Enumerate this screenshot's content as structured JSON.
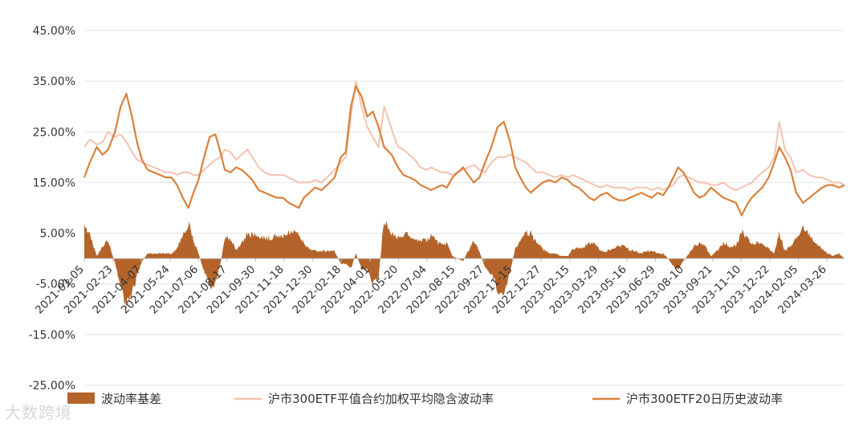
{
  "chart_data": {
    "type": "line",
    "title": "",
    "xlabel": "",
    "ylabel": "",
    "ylim": [
      -0.25,
      0.45
    ],
    "y_ticks": [
      "45.00%",
      "35.00%",
      "25.00%",
      "15.00%",
      "5.00%",
      "-5.00%",
      "-15.00%",
      "-25.00%"
    ],
    "y_tick_values": [
      0.45,
      0.35,
      0.25,
      0.15,
      0.05,
      -0.05,
      -0.15,
      -0.25
    ],
    "x_ticks": [
      "2021-01-05",
      "2021-02-23",
      "2021-04-07",
      "2021-05-24",
      "2021-07-06",
      "2021-08-17",
      "2021-09-30",
      "2021-11-18",
      "2021-12-30",
      "2022-02-18",
      "2022-04-01",
      "2022-05-20",
      "2022-07-04",
      "2022-08-15",
      "2022-09-27",
      "2022-11-15",
      "2022-12-27",
      "2023-02-15",
      "2023-03-29",
      "2023-05-16",
      "2023-06-29",
      "2023-08-10",
      "2023-09-21",
      "2023-11-10",
      "2023-12-22",
      "2024-02-05",
      "2024-03-26"
    ],
    "grid": true,
    "legend_position": "bottom",
    "colors": {
      "basis": "#b4642a",
      "implied": "#f4c2b0",
      "historical": "#d9813a",
      "grid": "#e4e4e4"
    },
    "legend": [
      {
        "label": "波动率基差",
        "kind": "bar",
        "color": "#b4642a"
      },
      {
        "label": "沪市300ETF平值合约加权平均隐含波动率",
        "kind": "line",
        "color": "#f4c2b0"
      },
      {
        "label": "沪市300ETF20日历史波动率",
        "kind": "line",
        "color": "#d9813a"
      }
    ],
    "x": [
      "2021-01-05",
      "2021-01-14",
      "2021-01-25",
      "2021-02-03",
      "2021-02-12",
      "2021-02-23",
      "2021-03-04",
      "2021-03-13",
      "2021-03-22",
      "2021-03-30",
      "2021-04-07",
      "2021-04-16",
      "2021-04-26",
      "2021-05-06",
      "2021-05-15",
      "2021-05-24",
      "2021-06-02",
      "2021-06-11",
      "2021-06-20",
      "2021-06-28",
      "2021-07-06",
      "2021-07-15",
      "2021-07-24",
      "2021-08-02",
      "2021-08-10",
      "2021-08-17",
      "2021-08-26",
      "2021-09-04",
      "2021-09-13",
      "2021-09-22",
      "2021-09-30",
      "2021-10-10",
      "2021-10-20",
      "2021-10-29",
      "2021-11-08",
      "2021-11-18",
      "2021-11-27",
      "2021-12-05",
      "2021-12-13",
      "2021-12-21",
      "2021-12-30",
      "2022-01-08",
      "2022-01-18",
      "2022-01-27",
      "2022-02-08",
      "2022-02-18",
      "2022-02-26",
      "2022-03-06",
      "2022-03-14",
      "2022-03-23",
      "2022-04-01",
      "2022-04-10",
      "2022-04-19",
      "2022-04-28",
      "2022-05-10",
      "2022-05-20",
      "2022-05-29",
      "2022-06-07",
      "2022-06-16",
      "2022-06-25",
      "2022-07-04",
      "2022-07-12",
      "2022-07-20",
      "2022-07-29",
      "2022-08-06",
      "2022-08-15",
      "2022-08-23",
      "2022-09-01",
      "2022-09-09",
      "2022-09-18",
      "2022-09-27",
      "2022-10-06",
      "2022-10-16",
      "2022-10-26",
      "2022-11-05",
      "2022-11-15",
      "2022-11-23",
      "2022-12-01",
      "2022-12-10",
      "2022-12-18",
      "2022-12-27",
      "2023-01-06",
      "2023-01-16",
      "2023-01-26",
      "2023-02-05",
      "2023-02-15",
      "2023-02-23",
      "2023-03-04",
      "2023-03-13",
      "2023-03-21",
      "2023-03-29",
      "2023-04-08",
      "2023-04-18",
      "2023-04-28",
      "2023-05-07",
      "2023-05-16",
      "2023-05-25",
      "2023-06-03",
      "2023-06-12",
      "2023-06-20",
      "2023-06-29",
      "2023-07-08",
      "2023-07-17",
      "2023-07-25",
      "2023-08-02",
      "2023-08-10",
      "2023-08-18",
      "2023-08-27",
      "2023-09-04",
      "2023-09-13",
      "2023-09-21",
      "2023-10-01",
      "2023-10-11",
      "2023-10-21",
      "2023-10-31",
      "2023-11-10",
      "2023-11-19",
      "2023-11-27",
      "2023-12-05",
      "2023-12-13",
      "2023-12-22",
      "2024-01-01",
      "2024-01-10",
      "2024-01-18",
      "2024-01-27",
      "2024-02-05",
      "2024-02-14",
      "2024-02-25",
      "2024-03-06",
      "2024-03-16",
      "2024-03-26",
      "2024-04-04",
      "2024-04-13",
      "2024-04-22",
      "2024-05-01"
    ],
    "series": [
      {
        "name": "沪市300ETF平值合约加权平均隐含波动率",
        "kind": "line",
        "values": [
          0.22,
          0.235,
          0.225,
          0.23,
          0.25,
          0.24,
          0.245,
          0.23,
          0.21,
          0.195,
          0.19,
          0.185,
          0.18,
          0.175,
          0.17,
          0.17,
          0.165,
          0.17,
          0.17,
          0.165,
          0.165,
          0.175,
          0.185,
          0.195,
          0.2,
          0.215,
          0.21,
          0.195,
          0.205,
          0.215,
          0.2,
          0.18,
          0.17,
          0.165,
          0.165,
          0.165,
          0.16,
          0.155,
          0.15,
          0.15,
          0.15,
          0.155,
          0.15,
          0.16,
          0.175,
          0.19,
          0.2,
          0.28,
          0.35,
          0.3,
          0.26,
          0.24,
          0.22,
          0.3,
          0.255,
          0.22,
          0.215,
          0.205,
          0.195,
          0.18,
          0.175,
          0.18,
          0.175,
          0.17,
          0.17,
          0.165,
          0.17,
          0.175,
          0.18,
          0.185,
          0.175,
          0.17,
          0.19,
          0.2,
          0.2,
          0.205,
          0.2,
          0.195,
          0.19,
          0.18,
          0.17,
          0.17,
          0.165,
          0.16,
          0.165,
          0.16,
          0.165,
          0.16,
          0.155,
          0.15,
          0.145,
          0.14,
          0.145,
          0.14,
          0.14,
          0.14,
          0.135,
          0.14,
          0.14,
          0.14,
          0.135,
          0.14,
          0.135,
          0.14,
          0.145,
          0.16,
          0.165,
          0.16,
          0.155,
          0.15,
          0.15,
          0.145,
          0.145,
          0.15,
          0.14,
          0.135,
          0.14,
          0.145,
          0.15,
          0.16,
          0.17,
          0.18,
          0.2,
          0.27,
          0.215,
          0.2,
          0.17,
          0.175,
          0.165,
          0.16,
          0.16,
          0.155,
          0.15,
          0.15,
          0.145
        ]
      },
      {
        "name": "沪市300ETF20日历史波动率",
        "kind": "line",
        "values": [
          0.16,
          0.19,
          0.22,
          0.205,
          0.215,
          0.25,
          0.3,
          0.325,
          0.28,
          0.23,
          0.195,
          0.175,
          0.17,
          0.165,
          0.16,
          0.16,
          0.145,
          0.12,
          0.1,
          0.13,
          0.155,
          0.2,
          0.24,
          0.245,
          0.21,
          0.175,
          0.17,
          0.18,
          0.175,
          0.165,
          0.155,
          0.135,
          0.13,
          0.125,
          0.12,
          0.12,
          0.11,
          0.105,
          0.1,
          0.12,
          0.13,
          0.14,
          0.135,
          0.145,
          0.16,
          0.2,
          0.21,
          0.3,
          0.34,
          0.32,
          0.28,
          0.29,
          0.26,
          0.22,
          0.205,
          0.18,
          0.165,
          0.16,
          0.155,
          0.145,
          0.14,
          0.135,
          0.14,
          0.145,
          0.14,
          0.16,
          0.17,
          0.18,
          0.165,
          0.15,
          0.16,
          0.19,
          0.22,
          0.26,
          0.27,
          0.23,
          0.18,
          0.16,
          0.14,
          0.13,
          0.14,
          0.15,
          0.155,
          0.15,
          0.16,
          0.155,
          0.145,
          0.14,
          0.13,
          0.12,
          0.115,
          0.125,
          0.13,
          0.12,
          0.115,
          0.115,
          0.12,
          0.125,
          0.13,
          0.125,
          0.12,
          0.13,
          0.125,
          0.14,
          0.16,
          0.18,
          0.17,
          0.15,
          0.13,
          0.12,
          0.125,
          0.14,
          0.13,
          0.12,
          0.115,
          0.11,
          0.085,
          0.105,
          0.12,
          0.13,
          0.14,
          0.16,
          0.19,
          0.22,
          0.2,
          0.175,
          0.13,
          0.11,
          0.12,
          0.13,
          0.14,
          0.145,
          0.145,
          0.14,
          0.145
        ]
      }
    ]
  },
  "watermark": "大数跨境"
}
